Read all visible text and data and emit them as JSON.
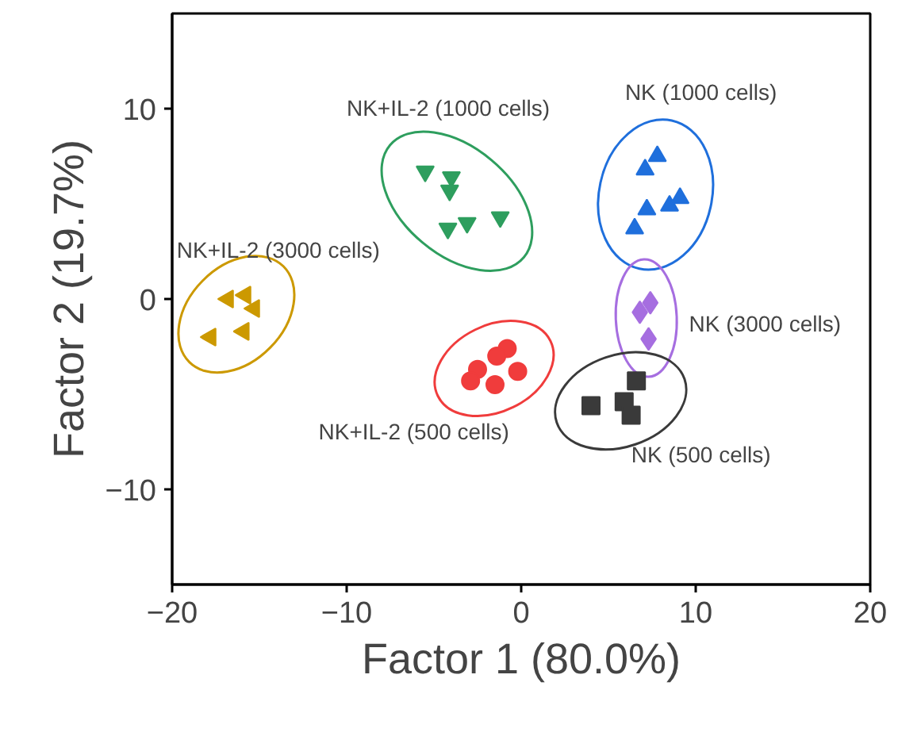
{
  "chart_data": {
    "type": "scatter",
    "xlabel": "Factor 1 (80.0%)",
    "ylabel": "Factor 2 (19.7%)",
    "xlim": [
      -20,
      20
    ],
    "ylim": [
      -15,
      15
    ],
    "xticks": [
      -20,
      -10,
      0,
      10,
      20
    ],
    "yticks": [
      -10,
      0,
      10
    ],
    "grid": false,
    "series": [
      {
        "name": "NK+IL-2 (1000 cells)",
        "color": "#2e9e5e",
        "marker": "triangle-down",
        "x": [
          -5.5,
          -4.0,
          -4.1,
          -1.2,
          -3.1,
          -4.2
        ],
        "values": [
          6.7,
          6.4,
          5.7,
          4.3,
          4.0,
          3.7
        ]
      },
      {
        "name": "NK (1000 cells)",
        "color": "#1f6fdc",
        "marker": "triangle",
        "x": [
          7.8,
          7.1,
          7.2,
          8.5,
          9.1,
          6.5
        ],
        "values": [
          7.5,
          6.8,
          4.7,
          4.9,
          5.3,
          3.7
        ]
      },
      {
        "name": "NK+IL-2 (3000 cells)",
        "color": "#cc9900",
        "marker": "triangle-left",
        "x": [
          -16.8,
          -15.8,
          -15.3,
          -17.8,
          -15.9
        ],
        "values": [
          0.0,
          0.2,
          -0.5,
          -2.0,
          -1.7
        ]
      },
      {
        "name": "NK (3000 cells)",
        "color": "#a66ee0",
        "marker": "diamond",
        "x": [
          7.4,
          6.8,
          7.3
        ],
        "values": [
          -0.2,
          -0.7,
          -2.1
        ]
      },
      {
        "name": "NK (500 cells)",
        "color": "#3a3a3a",
        "marker": "square",
        "x": [
          6.6,
          4.0,
          5.9,
          6.3
        ],
        "values": [
          -4.3,
          -5.6,
          -5.4,
          -6.1
        ]
      },
      {
        "name": "NK+IL-2 (500 cells)",
        "color": "#f03c3c",
        "marker": "circle",
        "x": [
          -0.8,
          -1.4,
          -2.5,
          -0.2,
          -2.9,
          -1.5
        ],
        "values": [
          -2.6,
          -3.0,
          -3.7,
          -3.8,
          -4.3,
          -4.5
        ]
      }
    ]
  }
}
